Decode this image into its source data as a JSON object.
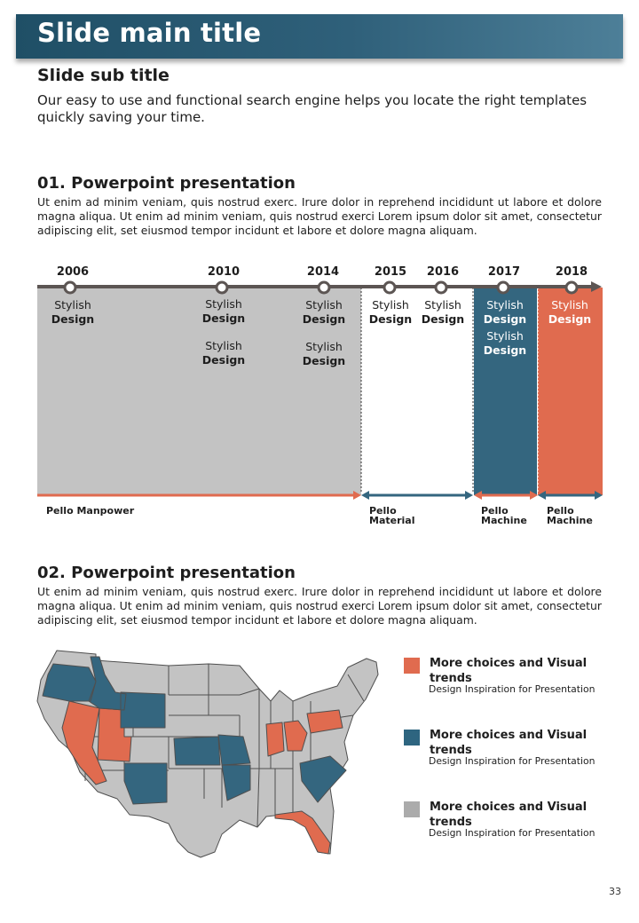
{
  "header": {
    "title": "Slide main title",
    "subtitle": "Slide sub title",
    "intro": "Our easy to use and functional search engine helps you locate the right templates quickly saving your time."
  },
  "section1": {
    "title": "01. Powerpoint presentation",
    "body": "Ut enim ad minim veniam, quis nostrud exerc. Irure dolor in reprehend incididunt ut labore et dolore magna aliqua. Ut enim ad minim veniam, quis nostrud exerci  Lorem ipsum dolor sit amet, consectetur adipiscing elit, set eiusmod tempor incidunt et labore et dolore magna aliquam."
  },
  "timeline": {
    "years": [
      "2006",
      "2010",
      "2014",
      "2015",
      "2016",
      "2017",
      "2018"
    ],
    "label_light": "Stylish",
    "label_bold": "Design",
    "ranges": {
      "r1": "Pello Manpower",
      "r2a": "Pello",
      "r2b": "Material",
      "r3a": "Pello",
      "r3b": "Machine",
      "r4a": "Pello",
      "r4b": "Machine"
    }
  },
  "section2": {
    "title": "02. Powerpoint presentation",
    "body": "Ut enim ad minim veniam, quis nostrud exerc. Irure dolor in reprehend incididunt ut labore et dolore magna aliqua. Ut enim ad minim veniam, quis nostrud exerci  Lorem ipsum dolor sit amet, consectetur adipiscing elit, set eiusmod tempor incidunt et labore et dolore magna aliquam."
  },
  "legend": [
    {
      "title": "More choices and Visual trends",
      "desc": "Design Inspiration for Presentation",
      "color": "#e06b4f"
    },
    {
      "title": "More choices and Visual trends",
      "desc": "Design Inspiration for Presentation",
      "color": "#2e6580"
    },
    {
      "title": "More choices and Visual trends",
      "desc": "Design Inspiration for Presentation",
      "color": "#ababab"
    }
  ],
  "colors": {
    "orange": "#e06b4f",
    "teal": "#34667f",
    "gray": "#c3c3c3",
    "dark": "#5c5553"
  },
  "page_number": "33"
}
